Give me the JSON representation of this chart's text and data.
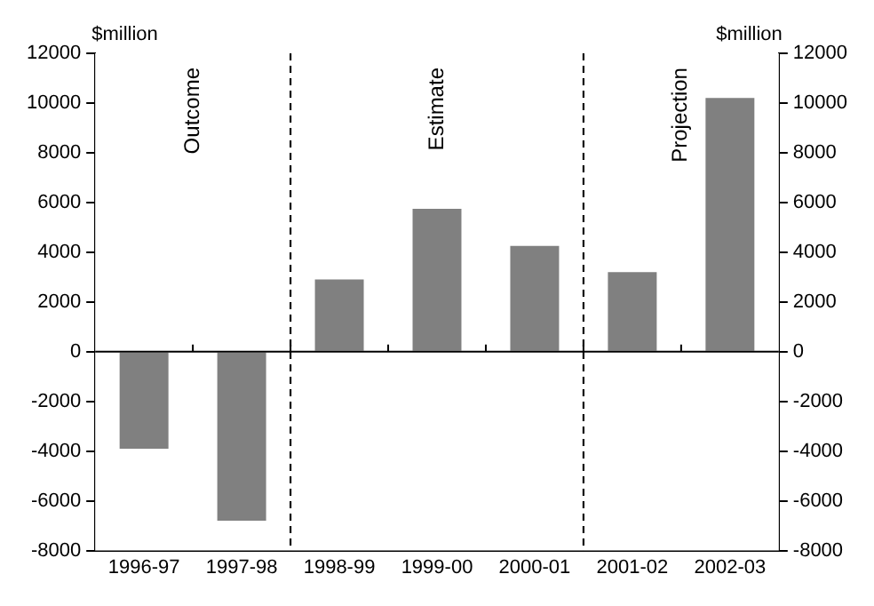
{
  "chart_data": {
    "type": "bar",
    "categories": [
      "1996-97",
      "1997-98",
      "1998-99",
      "1999-00",
      "2000-01",
      "2001-02",
      "2002-03"
    ],
    "values": [
      -3900,
      -6800,
      2900,
      5750,
      4250,
      3200,
      10200
    ],
    "color": "#808080",
    "ylabel": "$million",
    "y2label": "$million",
    "ylim": [
      -8000,
      12000
    ],
    "yticks": [
      -8000,
      -6000,
      -4000,
      -2000,
      0,
      2000,
      4000,
      6000,
      8000,
      10000,
      12000
    ],
    "y2lim": [
      -8000,
      12000
    ],
    "y2ticks": [
      -8000,
      -6000,
      -4000,
      -2000,
      0,
      2000,
      4000,
      6000,
      8000,
      10000,
      12000
    ],
    "bands": [
      {
        "axis": "x",
        "from": "1996-97",
        "to": "1997-98",
        "label": "Outcome",
        "color": "#ffffff"
      },
      {
        "axis": "x",
        "from": "1998-99",
        "to": "2000-01",
        "label": "Estimate",
        "color": "#ffffff"
      },
      {
        "axis": "x",
        "from": "2001-02",
        "to": "2002-03",
        "label": "Projection",
        "color": "#ffffff"
      }
    ],
    "grid": false,
    "legend": false
  }
}
